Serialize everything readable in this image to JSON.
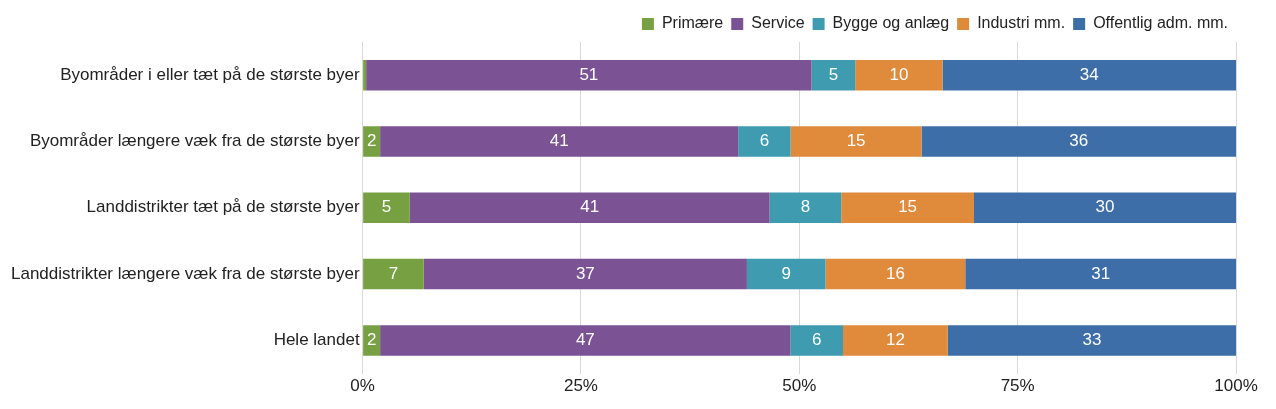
{
  "chart_data": {
    "type": "bar",
    "orientation": "horizontal",
    "stacked": true,
    "categories": [
      "Byområder i eller tæt på de største byer",
      "Byområder længere væk fra de største byer",
      "Landdistrikter tæt på de største byer",
      "Landdistrikter længere væk fra de største byer",
      "Hele landet"
    ],
    "series": [
      {
        "name": "Primære",
        "color": "#77a043",
        "values": [
          0.4,
          2,
          5.4,
          7,
          2
        ],
        "value_labels": [
          null,
          "2",
          "5",
          "7",
          "2"
        ]
      },
      {
        "name": "Service",
        "color": "#7b5294",
        "values": [
          51,
          41,
          41.2,
          37,
          47
        ],
        "value_labels": [
          "51",
          "41",
          "41",
          "37",
          "47"
        ]
      },
      {
        "name": "Bygge og anlæg",
        "color": "#3e9bb0",
        "values": [
          5,
          6,
          8.2,
          9,
          6
        ],
        "value_labels": [
          "5",
          "6",
          "8",
          "9",
          "6"
        ]
      },
      {
        "name": "Industri mm.",
        "color": "#e08a3c",
        "values": [
          10,
          15,
          15.2,
          16,
          12
        ],
        "value_labels": [
          "10",
          "15",
          "15",
          "16",
          "12"
        ]
      },
      {
        "name": "Offentlig adm. mm.",
        "color": "#3e6ea8",
        "values": [
          33.6,
          36,
          30,
          31,
          33
        ],
        "value_labels": [
          "34",
          "36",
          "30",
          "31",
          "33"
        ]
      }
    ],
    "xlim": [
      0,
      100
    ],
    "xticks": [
      {
        "value": 0,
        "label": "0%"
      },
      {
        "value": 25,
        "label": "25%"
      },
      {
        "value": 50,
        "label": "50%"
      },
      {
        "value": 75,
        "label": "75%"
      },
      {
        "value": 100,
        "label": "100%"
      }
    ],
    "grid": "x",
    "legend": "top"
  }
}
